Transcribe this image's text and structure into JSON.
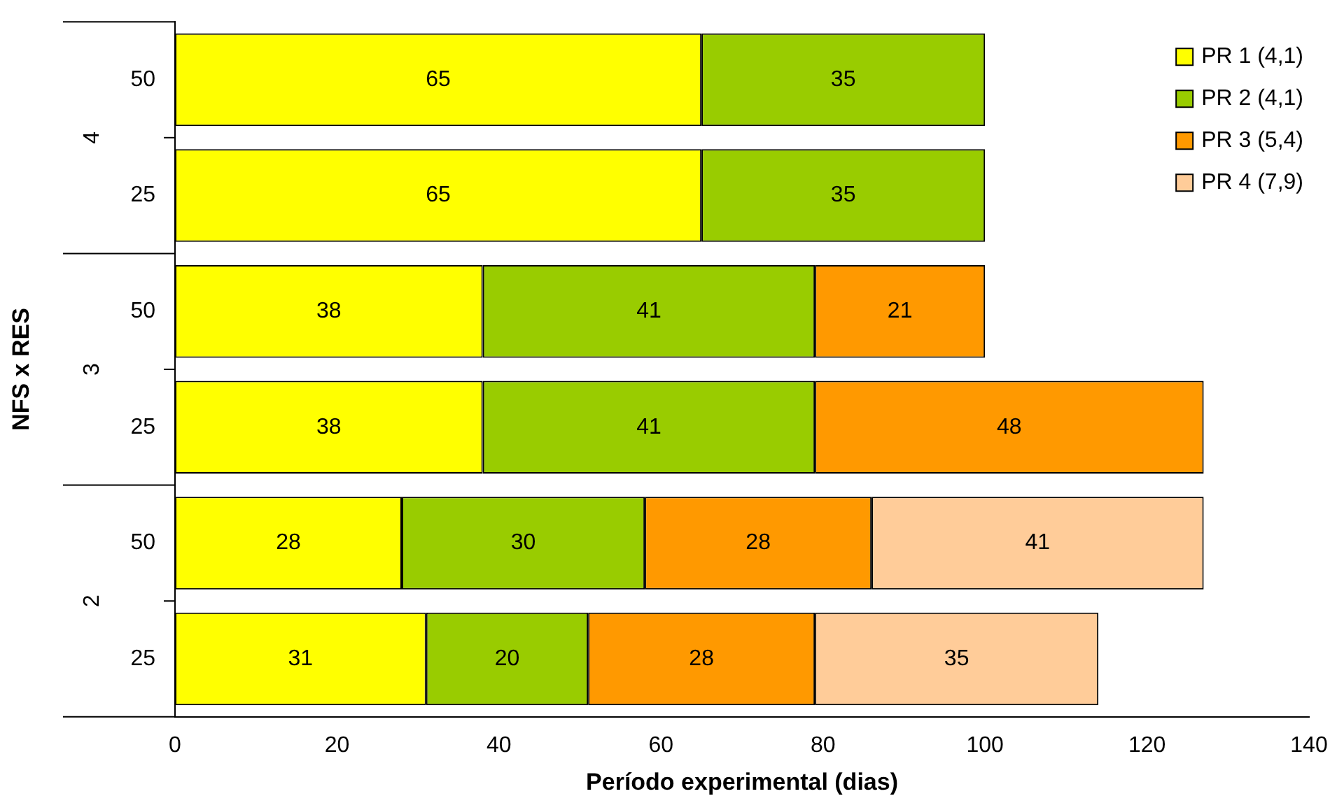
{
  "chart_data": {
    "type": "bar",
    "orientation": "horizontal",
    "stacked": true,
    "xlabel": "Período experimental (dias)",
    "ylabel": "NFS x RES",
    "categories": [
      "50",
      "25",
      "50",
      "25",
      "50",
      "25"
    ],
    "series": [
      {
        "name": "PR 1 (4,1)",
        "color": "#ffff00",
        "values": [
          65,
          65,
          38,
          38,
          28,
          31
        ]
      },
      {
        "name": "PR 2 (4,1)",
        "color": "#99cc00",
        "values": [
          35,
          35,
          41,
          41,
          30,
          20
        ]
      },
      {
        "name": "PR 3 (5,4)",
        "color": "#ff9900",
        "values": [
          null,
          null,
          21,
          48,
          28,
          28
        ]
      },
      {
        "name": "PR 4 (7,9)",
        "color": "#ffcc99",
        "values": [
          null,
          null,
          null,
          null,
          41,
          35
        ]
      }
    ],
    "xlim": [
      0,
      140
    ],
    "xticks": [
      0,
      20,
      40,
      60,
      80,
      100,
      120,
      140
    ],
    "grid": false,
    "legend": "top right",
    "data_labels": true,
    "annotations": [
      "4",
      "3",
      "2"
    ]
  }
}
